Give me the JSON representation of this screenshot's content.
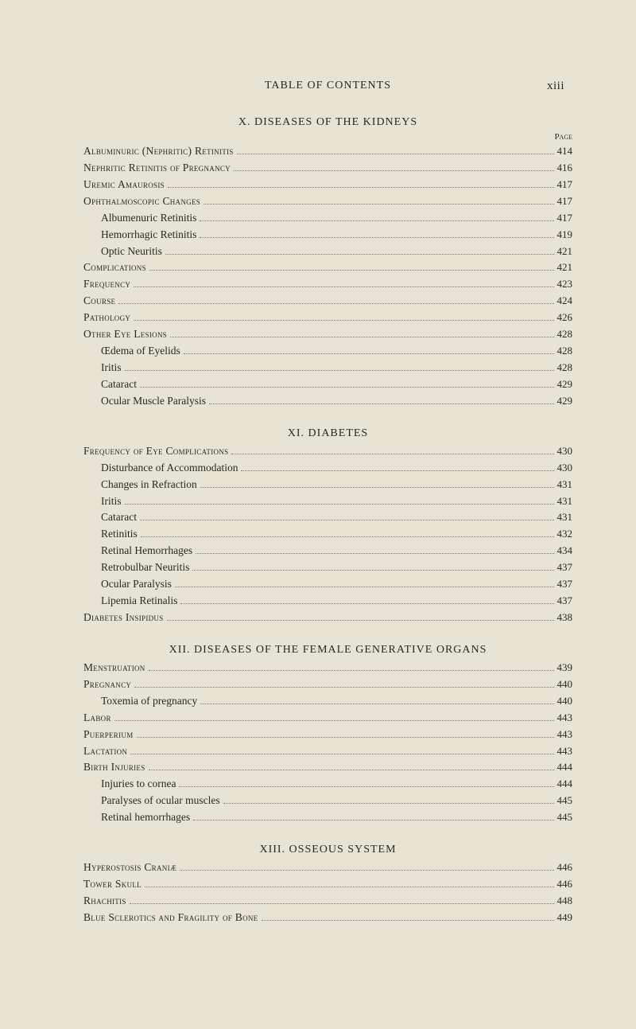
{
  "runningTitle": "TABLE OF CONTENTS",
  "pageNumber": "xiii",
  "pageLabel": "Page",
  "sections": [
    {
      "title": "X. DISEASES OF THE KIDNEYS",
      "entries": [
        {
          "label": "Albuminuric (Nephritic) Retinitis",
          "page": "414",
          "level": 0,
          "sc": true
        },
        {
          "label": "Nephritic Retinitis of Pregnancy",
          "page": "416",
          "level": 0,
          "sc": true
        },
        {
          "label": "Uremic Amaurosis",
          "page": "417",
          "level": 0,
          "sc": true
        },
        {
          "label": "Ophthalmoscopic Changes",
          "page": "417",
          "level": 0,
          "sc": true
        },
        {
          "label": "Albumenuric Retinitis",
          "page": "417",
          "level": 1,
          "sc": false
        },
        {
          "label": "Hemorrhagic Retinitis",
          "page": "419",
          "level": 1,
          "sc": false
        },
        {
          "label": "Optic Neuritis",
          "page": "421",
          "level": 1,
          "sc": false
        },
        {
          "label": "Complications",
          "page": "421",
          "level": 0,
          "sc": true
        },
        {
          "label": "Frequency",
          "page": "423",
          "level": 0,
          "sc": true
        },
        {
          "label": "Course",
          "page": "424",
          "level": 0,
          "sc": true
        },
        {
          "label": "Pathology",
          "page": "426",
          "level": 0,
          "sc": true
        },
        {
          "label": "Other Eye Lesions",
          "page": "428",
          "level": 0,
          "sc": true
        },
        {
          "label": "Œdema of Eyelids",
          "page": "428",
          "level": 1,
          "sc": false
        },
        {
          "label": "Iritis",
          "page": "428",
          "level": 1,
          "sc": false
        },
        {
          "label": "Cataract",
          "page": "429",
          "level": 1,
          "sc": false
        },
        {
          "label": "Ocular Muscle Paralysis",
          "page": "429",
          "level": 1,
          "sc": false
        }
      ]
    },
    {
      "title": "XI. DIABETES",
      "entries": [
        {
          "label": "Frequency of Eye Complications",
          "page": "430",
          "level": 0,
          "sc": true
        },
        {
          "label": "Disturbance of Accommodation",
          "page": "430",
          "level": 1,
          "sc": false
        },
        {
          "label": "Changes in Refraction",
          "page": "431",
          "level": 1,
          "sc": false
        },
        {
          "label": "Iritis",
          "page": "431",
          "level": 1,
          "sc": false
        },
        {
          "label": "Cataract",
          "page": "431",
          "level": 1,
          "sc": false
        },
        {
          "label": "Retinitis",
          "page": "432",
          "level": 1,
          "sc": false
        },
        {
          "label": "Retinal Hemorrhages",
          "page": "434",
          "level": 1,
          "sc": false
        },
        {
          "label": "Retrobulbar Neuritis",
          "page": "437",
          "level": 1,
          "sc": false
        },
        {
          "label": "Ocular Paralysis",
          "page": "437",
          "level": 1,
          "sc": false
        },
        {
          "label": "Lipemia Retinalis",
          "page": "437",
          "level": 1,
          "sc": false
        },
        {
          "label": "Diabetes Insipidus",
          "page": "438",
          "level": 0,
          "sc": true
        }
      ]
    },
    {
      "title": "XII. DISEASES OF THE FEMALE GENERATIVE ORGANS",
      "entries": [
        {
          "label": "Menstruation",
          "page": "439",
          "level": 0,
          "sc": true
        },
        {
          "label": "Pregnancy",
          "page": "440",
          "level": 0,
          "sc": true
        },
        {
          "label": "Toxemia of pregnancy",
          "page": "440",
          "level": 1,
          "sc": false
        },
        {
          "label": "Labor",
          "page": "443",
          "level": 0,
          "sc": true
        },
        {
          "label": "Puerperium",
          "page": "443",
          "level": 0,
          "sc": true
        },
        {
          "label": "Lactation",
          "page": "443",
          "level": 0,
          "sc": true
        },
        {
          "label": "Birth Injuries",
          "page": "444",
          "level": 0,
          "sc": true
        },
        {
          "label": "Injuries to cornea",
          "page": "444",
          "level": 1,
          "sc": false
        },
        {
          "label": "Paralyses of ocular muscles",
          "page": "445",
          "level": 1,
          "sc": false
        },
        {
          "label": "Retinal hemorrhages",
          "page": "445",
          "level": 1,
          "sc": false
        }
      ]
    },
    {
      "title": "XIII. OSSEOUS SYSTEM",
      "entries": [
        {
          "label": "Hyperostosis Craniæ",
          "page": "446",
          "level": 0,
          "sc": true
        },
        {
          "label": "Tower Skull",
          "page": "446",
          "level": 0,
          "sc": true
        },
        {
          "label": "Rhachitis",
          "page": "448",
          "level": 0,
          "sc": true
        },
        {
          "label": "Blue Sclerotics and Fragility of Bone",
          "page": "449",
          "level": 0,
          "sc": true
        }
      ]
    }
  ]
}
